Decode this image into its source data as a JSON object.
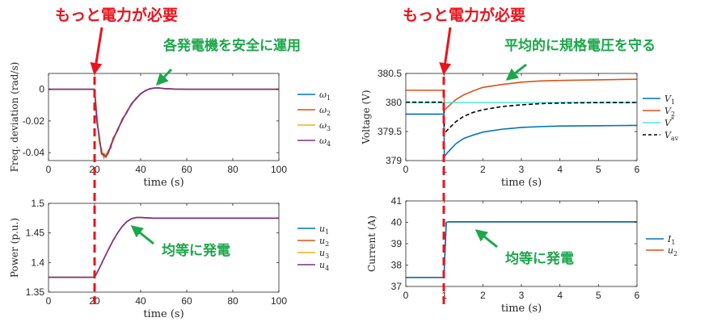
{
  "callouts": {
    "left_demand": "もっと電力が必要",
    "right_demand": "もっと電力が必要",
    "left_freq_note": "各発電機を安全に運用",
    "left_power_note": "均等に発電",
    "right_voltage_note": "平均的に規格電圧を守る",
    "right_current_note": "均等に発電"
  },
  "colors": {
    "series1": "#0072BD",
    "series2": "#D95319",
    "series3": "#EDB120",
    "series4": "#7E2F8E",
    "cyan": "#4DE8EA",
    "dashed_black": "#000000",
    "event_line": "#E8141E",
    "callout_red": "#E8141E",
    "callout_green": "#1BA74A"
  },
  "chart_data": [
    {
      "id": "freq",
      "type": "line",
      "xlabel": "time (s)",
      "ylabel": "Freq. deviation (rad/s)",
      "xlim": [
        0,
        100
      ],
      "ylim": [
        -0.045,
        0.01
      ],
      "xticks": [
        0,
        20,
        40,
        60,
        80,
        100
      ],
      "xtick_labels": [
        "0",
        "20",
        "40",
        "60",
        "80",
        "100"
      ],
      "yticks": [
        0,
        -0.02,
        -0.04
      ],
      "ytick_labels": [
        "0",
        "-0.02",
        "-0.04"
      ],
      "legend": [
        "ω1",
        "ω2",
        "ω3",
        "ω4"
      ],
      "legend_main": [
        "ω",
        "ω",
        "ω",
        "ω"
      ],
      "legend_sub": [
        "1",
        "2",
        "3",
        "4"
      ],
      "legend_sup": [
        "",
        "",
        "",
        ""
      ],
      "series": [
        {
          "name": "ω1",
          "x": [
            0,
            20,
            21,
            22,
            23,
            24,
            25,
            26,
            27,
            28,
            30,
            32,
            34,
            36,
            38,
            40,
            42,
            44,
            46,
            48,
            50,
            55,
            60,
            100
          ],
          "y": [
            0,
            0,
            -0.018,
            -0.031,
            -0.039,
            -0.0425,
            -0.0418,
            -0.0395,
            -0.036,
            -0.032,
            -0.0255,
            -0.0195,
            -0.0142,
            -0.0095,
            -0.0058,
            -0.0029,
            -0.0009,
            0.0003,
            0.0008,
            0.0008,
            0.0005,
            0.0001,
            0,
            0
          ]
        },
        {
          "name": "ω2",
          "x": [
            0,
            20,
            21,
            22,
            23,
            24,
            25,
            26,
            27,
            28,
            30,
            32,
            34,
            36,
            38,
            40,
            42,
            44,
            46,
            48,
            50,
            55,
            60,
            100
          ],
          "y": [
            0,
            0,
            -0.021,
            -0.029,
            -0.041,
            -0.0405,
            -0.043,
            -0.0385,
            -0.0372,
            -0.031,
            -0.0262,
            -0.0188,
            -0.0148,
            -0.009,
            -0.0062,
            -0.0027,
            -0.0011,
            0.0004,
            0.0007,
            0.0009,
            0.0004,
            0.0001,
            0,
            0
          ]
        },
        {
          "name": "ω3",
          "x": [
            0,
            20,
            21,
            22,
            23,
            24,
            25,
            26,
            27,
            28,
            30,
            32,
            34,
            36,
            38,
            40,
            42,
            44,
            46,
            48,
            50,
            55,
            60,
            100
          ],
          "y": [
            0,
            0,
            -0.015,
            -0.034,
            -0.037,
            -0.0438,
            -0.0405,
            -0.041,
            -0.0348,
            -0.033,
            -0.0248,
            -0.0202,
            -0.0138,
            -0.0099,
            -0.0055,
            -0.0031,
            -0.0008,
            0.0002,
            0.0009,
            0.0007,
            0.0005,
            0.0001,
            0,
            0
          ]
        },
        {
          "name": "ω4",
          "x": [
            0,
            20,
            21,
            22,
            23,
            24,
            25,
            26,
            27,
            28,
            30,
            32,
            34,
            36,
            38,
            40,
            42,
            44,
            46,
            48,
            50,
            55,
            60,
            100
          ],
          "y": [
            0,
            0,
            -0.019,
            -0.03,
            -0.04,
            -0.042,
            -0.0422,
            -0.0398,
            -0.0358,
            -0.0318,
            -0.0256,
            -0.0194,
            -0.0143,
            -0.0094,
            -0.0058,
            -0.0029,
            -0.0009,
            0.0003,
            0.0008,
            0.0008,
            0.0005,
            0.0001,
            0,
            0
          ]
        }
      ]
    },
    {
      "id": "power",
      "type": "line",
      "xlabel": "time (s)",
      "ylabel": "Power (p.u.)",
      "xlim": [
        0,
        100
      ],
      "ylim": [
        1.35,
        1.5
      ],
      "xticks": [
        0,
        20,
        40,
        60,
        80,
        100
      ],
      "xtick_labels": [
        "0",
        "20",
        "40",
        "60",
        "80",
        "100"
      ],
      "yticks": [
        1.35,
        1.4,
        1.45,
        1.5
      ],
      "ytick_labels": [
        "1.35",
        "1.4",
        "1.45",
        "1.5"
      ],
      "legend": [
        "u1",
        "u2",
        "u3",
        "u4"
      ],
      "legend_main": [
        "u",
        "u",
        "u",
        "u"
      ],
      "legend_sub": [
        "1",
        "2",
        "3",
        "4"
      ],
      "legend_sup": [
        "",
        "",
        "",
        ""
      ],
      "series": [
        {
          "name": "u1",
          "x": [
            0,
            20,
            21,
            22,
            24,
            26,
            28,
            30,
            32,
            34,
            36,
            38,
            40,
            45,
            50,
            60,
            100
          ],
          "y": [
            1.375,
            1.375,
            1.382,
            1.39,
            1.406,
            1.422,
            1.437,
            1.45,
            1.461,
            1.469,
            1.474,
            1.476,
            1.476,
            1.475,
            1.475,
            1.475,
            1.475
          ]
        },
        {
          "name": "u2",
          "x": [
            0,
            20,
            21,
            22,
            24,
            26,
            28,
            30,
            32,
            34,
            36,
            38,
            40,
            45,
            50,
            60,
            100
          ],
          "y": [
            1.375,
            1.375,
            1.382,
            1.39,
            1.406,
            1.422,
            1.437,
            1.45,
            1.461,
            1.469,
            1.474,
            1.476,
            1.476,
            1.475,
            1.475,
            1.475,
            1.475
          ]
        },
        {
          "name": "u3",
          "x": [
            0,
            20,
            21,
            22,
            24,
            26,
            28,
            30,
            32,
            34,
            36,
            38,
            40,
            45,
            50,
            60,
            100
          ],
          "y": [
            1.375,
            1.375,
            1.382,
            1.39,
            1.406,
            1.422,
            1.437,
            1.45,
            1.461,
            1.469,
            1.474,
            1.476,
            1.476,
            1.475,
            1.475,
            1.475,
            1.475
          ]
        },
        {
          "name": "u4",
          "x": [
            0,
            20,
            21,
            22,
            24,
            26,
            28,
            30,
            32,
            34,
            36,
            38,
            40,
            45,
            50,
            60,
            100
          ],
          "y": [
            1.375,
            1.375,
            1.382,
            1.39,
            1.406,
            1.422,
            1.437,
            1.45,
            1.461,
            1.469,
            1.474,
            1.476,
            1.476,
            1.475,
            1.475,
            1.475,
            1.475
          ]
        }
      ]
    },
    {
      "id": "voltage",
      "type": "line",
      "xlabel": "time (s)",
      "ylabel": "Voltage (V)",
      "xlim": [
        0,
        6
      ],
      "ylim": [
        379,
        380.5
      ],
      "xticks": [
        0,
        1,
        2,
        3,
        4,
        5,
        6
      ],
      "xtick_labels": [
        "0",
        "1",
        "2",
        "3",
        "4",
        "5",
        "6"
      ],
      "yticks": [
        379,
        379.5,
        380,
        380.5
      ],
      "ytick_labels": [
        "379",
        "379.5",
        "380",
        "380.5"
      ],
      "legend": [
        "V1",
        "V2",
        "V*",
        "Vav"
      ],
      "legend_main": [
        "V",
        "V",
        "V",
        "V"
      ],
      "legend_sub": [
        "1",
        "2",
        "",
        "av"
      ],
      "legend_sup": [
        "",
        "",
        "*",
        ""
      ],
      "series": [
        {
          "name": "V1",
          "x": [
            0,
            0.99,
            1,
            1.1,
            1.3,
            1.5,
            1.75,
            2,
            2.5,
            3,
            3.5,
            4,
            5,
            6
          ],
          "y": [
            379.8,
            379.8,
            379.07,
            379.15,
            379.29,
            379.38,
            379.44,
            379.49,
            379.54,
            379.57,
            379.585,
            379.595,
            379.6,
            379.605
          ]
        },
        {
          "name": "V2",
          "x": [
            0,
            0.99,
            1,
            1.1,
            1.3,
            1.5,
            1.75,
            2,
            2.5,
            3,
            3.5,
            4,
            5,
            6
          ],
          "y": [
            380.21,
            380.21,
            379.87,
            379.93,
            380.05,
            380.13,
            380.2,
            380.26,
            380.31,
            380.35,
            380.37,
            380.38,
            380.39,
            380.4
          ]
        },
        {
          "name": "V*",
          "x": [
            0,
            6
          ],
          "y": [
            380,
            380
          ],
          "style": "solid"
        },
        {
          "name": "Vav",
          "x": [
            0,
            0.99,
            1,
            1.1,
            1.3,
            1.5,
            1.75,
            2,
            2.5,
            3,
            3.5,
            4,
            5,
            6
          ],
          "y": [
            380.005,
            380.005,
            379.47,
            379.54,
            379.67,
            379.76,
            379.83,
            379.875,
            379.93,
            379.96,
            379.98,
            379.99,
            379.998,
            380
          ],
          "style": "dashed"
        }
      ]
    },
    {
      "id": "current",
      "type": "line",
      "xlabel": "time (s)",
      "ylabel": "Current (A)",
      "xlim": [
        0,
        6
      ],
      "ylim": [
        37,
        41
      ],
      "xticks": [
        0,
        1,
        2,
        3,
        4,
        5,
        6
      ],
      "xtick_labels": [
        "0",
        "1",
        "2",
        "3",
        "4",
        "5",
        "6"
      ],
      "yticks": [
        37,
        38,
        39,
        40,
        41
      ],
      "ytick_labels": [
        "37",
        "38",
        "39",
        "40",
        "41"
      ],
      "legend": [
        "I1",
        "u2"
      ],
      "legend_main": [
        "I",
        "u"
      ],
      "legend_sub": [
        "1",
        "2"
      ],
      "legend_sup": [
        "",
        ""
      ],
      "series": [
        {
          "name": "I1",
          "x": [
            0,
            0.99,
            1.05,
            1.1,
            2,
            6
          ],
          "y": [
            37.42,
            37.42,
            40.0,
            40.02,
            40.02,
            40.02
          ]
        },
        {
          "name": "u2",
          "x": [
            0,
            0.99,
            1.05,
            1.1,
            2,
            6
          ],
          "y": [
            37.42,
            37.42,
            40.0,
            40.02,
            40.02,
            40.02
          ]
        }
      ]
    }
  ]
}
